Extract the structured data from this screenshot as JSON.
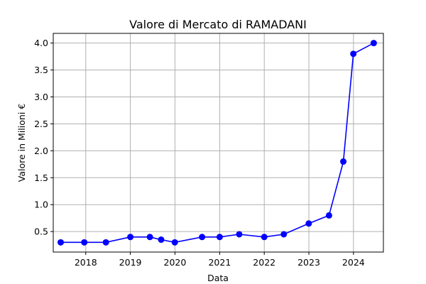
{
  "chart_data": {
    "type": "line",
    "title": "Valore di Mercato di RAMADANI",
    "xlabel": "Data",
    "ylabel": "Valore in Milioni €",
    "x_ticks": [
      "2018",
      "2019",
      "2020",
      "2021",
      "2022",
      "2023",
      "2024"
    ],
    "y_ticks": [
      "0.5",
      "1.0",
      "1.5",
      "2.0",
      "2.5",
      "3.0",
      "3.5",
      "4.0"
    ],
    "xlim": [
      "2017-04-10",
      "2024-09-02"
    ],
    "ylim": [
      0.12,
      4.18
    ],
    "grid": true,
    "line_color": "#0000ff",
    "series": [
      {
        "x": [
          "2017-06-10",
          "2017-12-20",
          "2018-06-15",
          "2019-01-01",
          "2019-06-10",
          "2019-09-10",
          "2019-12-31",
          "2020-08-10",
          "2021-01-01",
          "2021-06-10",
          "2022-01-01",
          "2022-06-10",
          "2022-12-31",
          "2023-06-15",
          "2023-10-10",
          "2023-12-31",
          "2024-06-15"
        ],
        "y": [
          0.3,
          0.3,
          0.3,
          0.4,
          0.4,
          0.35,
          0.3,
          0.4,
          0.4,
          0.45,
          0.4,
          0.45,
          0.65,
          0.8,
          1.8,
          3.8,
          4.0
        ]
      }
    ]
  }
}
